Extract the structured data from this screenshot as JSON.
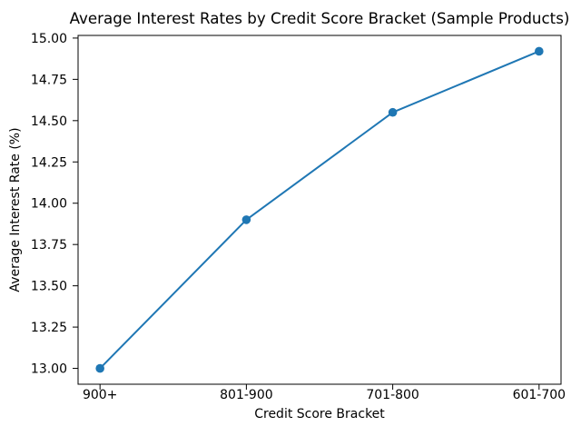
{
  "chart_data": {
    "type": "line",
    "title": "Average Interest Rates by Credit Score Bracket (Sample Products)",
    "xlabel": "Credit Score Bracket",
    "ylabel": "Average Interest Rate (%)",
    "categories": [
      "900+",
      "801-900",
      "701-800",
      "601-700"
    ],
    "values": [
      13.0,
      13.9,
      14.55,
      14.92
    ],
    "yticks": [
      13.0,
      13.25,
      13.5,
      13.75,
      14.0,
      14.25,
      14.5,
      14.75,
      15.0
    ],
    "ytick_labels": [
      "13.00",
      "13.25",
      "13.50",
      "13.75",
      "14.00",
      "14.25",
      "14.50",
      "14.75",
      "15.00"
    ],
    "ylim": [
      12.904,
      15.016
    ],
    "line_color": "#1f77b4",
    "marker": "o",
    "grid": false,
    "legend_position": "none",
    "background_color": "#ffffff",
    "text_color": "#000000"
  }
}
